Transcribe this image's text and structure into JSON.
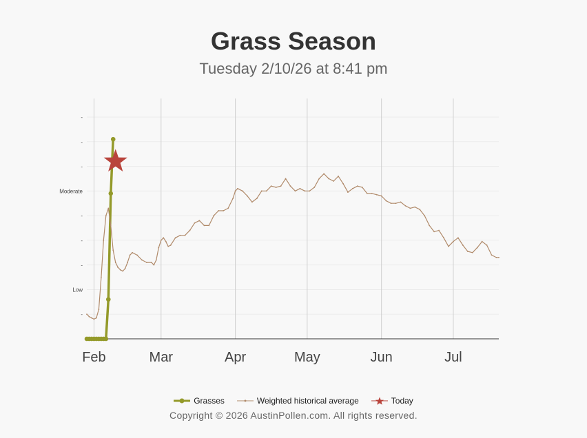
{
  "title": "Grass Season",
  "subtitle": "Tuesday 2/10/26 at 8:41 pm",
  "copyright": "Copyright © 2026 AustinPollen.com.  All rights reserved.",
  "colors": {
    "grasses": "#949a2a",
    "historical": "#b08a6a",
    "today": "#b9443c",
    "grid": "#d0d0d0",
    "axis": "#333333"
  },
  "legend": [
    {
      "key": "grasses",
      "label": "Grasses"
    },
    {
      "key": "historical",
      "label": "Weighted historical average"
    },
    {
      "key": "today",
      "label": "Today"
    }
  ],
  "chart_data": {
    "type": "line",
    "title": "Grass Season",
    "subtitle": "Tuesday 2/10/26 at 8:41 pm",
    "x_axis": {
      "type": "date",
      "range": [
        "2026-01-29",
        "2026-07-20"
      ],
      "ticks": [
        {
          "date": "2026-02-01",
          "label": "Feb"
        },
        {
          "date": "2026-03-01",
          "label": "Mar"
        },
        {
          "date": "2026-04-01",
          "label": "Apr"
        },
        {
          "date": "2026-05-01",
          "label": "May"
        },
        {
          "date": "2026-06-01",
          "label": "Jun"
        },
        {
          "date": "2026-07-01",
          "label": "Jul"
        }
      ]
    },
    "y_axis": {
      "range": [
        0,
        9
      ],
      "ticks": [
        {
          "value": 1,
          "label": "-"
        },
        {
          "value": 2,
          "label": "Low"
        },
        {
          "value": 3,
          "label": "-"
        },
        {
          "value": 4,
          "label": "-"
        },
        {
          "value": 5,
          "label": "-"
        },
        {
          "value": 6,
          "label": "Moderate"
        },
        {
          "value": 7,
          "label": "-"
        },
        {
          "value": 8,
          "label": "-"
        },
        {
          "value": 9,
          "label": "-"
        }
      ]
    },
    "grid": {
      "x": true,
      "y": true
    },
    "legend_position": "bottom",
    "series": [
      {
        "name": "Grasses",
        "key": "grasses",
        "style": "line-markers",
        "points": [
          [
            "2026-01-29",
            0
          ],
          [
            "2026-01-30",
            0
          ],
          [
            "2026-01-31",
            0
          ],
          [
            "2026-02-01",
            0
          ],
          [
            "2026-02-02",
            0
          ],
          [
            "2026-02-03",
            0
          ],
          [
            "2026-02-04",
            0
          ],
          [
            "2026-02-05",
            0
          ],
          [
            "2026-02-06",
            0
          ],
          [
            "2026-02-07",
            1.6
          ],
          [
            "2026-02-08",
            5.9
          ],
          [
            "2026-02-09",
            8.1
          ]
        ]
      },
      {
        "name": "Weighted historical average",
        "key": "historical",
        "style": "line",
        "points": [
          [
            "2026-01-29",
            1.0
          ],
          [
            "2026-01-30",
            0.9
          ],
          [
            "2026-01-31",
            0.85
          ],
          [
            "2026-02-01",
            0.8
          ],
          [
            "2026-02-02",
            0.85
          ],
          [
            "2026-02-03",
            1.2
          ],
          [
            "2026-02-04",
            2.5
          ],
          [
            "2026-02-05",
            4.0
          ],
          [
            "2026-02-06",
            5.0
          ],
          [
            "2026-02-07",
            5.3
          ],
          [
            "2026-02-08",
            4.6
          ],
          [
            "2026-02-09",
            3.6
          ],
          [
            "2026-02-10",
            3.1
          ],
          [
            "2026-02-11",
            2.9
          ],
          [
            "2026-02-12",
            2.8
          ],
          [
            "2026-02-13",
            2.75
          ],
          [
            "2026-02-14",
            2.85
          ],
          [
            "2026-02-15",
            3.1
          ],
          [
            "2026-02-16",
            3.4
          ],
          [
            "2026-02-17",
            3.5
          ],
          [
            "2026-02-19",
            3.4
          ],
          [
            "2026-02-21",
            3.2
          ],
          [
            "2026-02-23",
            3.1
          ],
          [
            "2026-02-25",
            3.1
          ],
          [
            "2026-02-26",
            3.0
          ],
          [
            "2026-02-27",
            3.2
          ],
          [
            "2026-02-28",
            3.7
          ],
          [
            "2026-03-01",
            4.0
          ],
          [
            "2026-03-02",
            4.1
          ],
          [
            "2026-03-03",
            3.95
          ],
          [
            "2026-03-04",
            3.75
          ],
          [
            "2026-03-05",
            3.8
          ],
          [
            "2026-03-07",
            4.1
          ],
          [
            "2026-03-09",
            4.2
          ],
          [
            "2026-03-11",
            4.2
          ],
          [
            "2026-03-13",
            4.4
          ],
          [
            "2026-03-15",
            4.7
          ],
          [
            "2026-03-17",
            4.8
          ],
          [
            "2026-03-19",
            4.6
          ],
          [
            "2026-03-21",
            4.6
          ],
          [
            "2026-03-23",
            5.0
          ],
          [
            "2026-03-25",
            5.2
          ],
          [
            "2026-03-27",
            5.2
          ],
          [
            "2026-03-29",
            5.3
          ],
          [
            "2026-03-31",
            5.7
          ],
          [
            "2026-04-01",
            6.0
          ],
          [
            "2026-04-02",
            6.1
          ],
          [
            "2026-04-04",
            6.0
          ],
          [
            "2026-04-06",
            5.8
          ],
          [
            "2026-04-08",
            5.55
          ],
          [
            "2026-04-10",
            5.7
          ],
          [
            "2026-04-12",
            6.0
          ],
          [
            "2026-04-14",
            6.0
          ],
          [
            "2026-04-16",
            6.2
          ],
          [
            "2026-04-18",
            6.15
          ],
          [
            "2026-04-20",
            6.2
          ],
          [
            "2026-04-22",
            6.5
          ],
          [
            "2026-04-24",
            6.2
          ],
          [
            "2026-04-26",
            6.0
          ],
          [
            "2026-04-28",
            6.1
          ],
          [
            "2026-04-30",
            6.0
          ],
          [
            "2026-05-02",
            6.0
          ],
          [
            "2026-05-04",
            6.15
          ],
          [
            "2026-05-06",
            6.5
          ],
          [
            "2026-05-08",
            6.7
          ],
          [
            "2026-05-10",
            6.5
          ],
          [
            "2026-05-12",
            6.4
          ],
          [
            "2026-05-14",
            6.6
          ],
          [
            "2026-05-16",
            6.3
          ],
          [
            "2026-05-18",
            5.95
          ],
          [
            "2026-05-20",
            6.1
          ],
          [
            "2026-05-22",
            6.2
          ],
          [
            "2026-05-24",
            6.15
          ],
          [
            "2026-05-26",
            5.9
          ],
          [
            "2026-05-28",
            5.9
          ],
          [
            "2026-05-30",
            5.85
          ],
          [
            "2026-06-01",
            5.8
          ],
          [
            "2026-06-03",
            5.6
          ],
          [
            "2026-06-05",
            5.5
          ],
          [
            "2026-06-07",
            5.5
          ],
          [
            "2026-06-09",
            5.55
          ],
          [
            "2026-06-11",
            5.4
          ],
          [
            "2026-06-13",
            5.3
          ],
          [
            "2026-06-15",
            5.35
          ],
          [
            "2026-06-17",
            5.25
          ],
          [
            "2026-06-19",
            5.0
          ],
          [
            "2026-06-21",
            4.6
          ],
          [
            "2026-06-23",
            4.35
          ],
          [
            "2026-06-25",
            4.4
          ],
          [
            "2026-06-27",
            4.1
          ],
          [
            "2026-06-29",
            3.75
          ],
          [
            "2026-07-01",
            3.95
          ],
          [
            "2026-07-03",
            4.1
          ],
          [
            "2026-07-05",
            3.8
          ],
          [
            "2026-07-07",
            3.55
          ],
          [
            "2026-07-09",
            3.5
          ],
          [
            "2026-07-11",
            3.7
          ],
          [
            "2026-07-13",
            3.95
          ],
          [
            "2026-07-15",
            3.8
          ],
          [
            "2026-07-17",
            3.4
          ],
          [
            "2026-07-19",
            3.3
          ],
          [
            "2026-07-20",
            3.3
          ]
        ]
      },
      {
        "name": "Today",
        "key": "today",
        "style": "star",
        "points": [
          [
            "2026-02-10",
            7.2
          ]
        ]
      }
    ]
  }
}
